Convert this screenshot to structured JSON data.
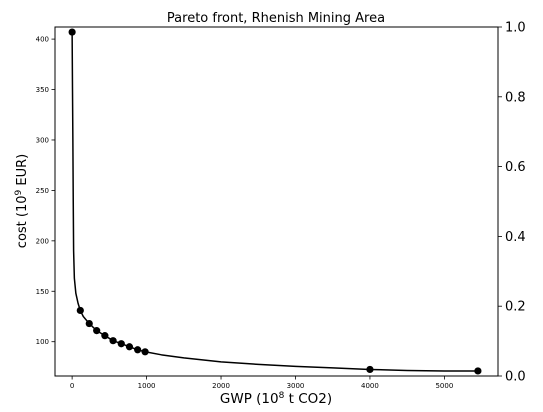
{
  "chart_data": {
    "type": "line",
    "title": "Pareto front, Rhenish Mining Area",
    "xlabel": {
      "pre": "GWP (10",
      "sup": "8",
      "post": " t CO2)"
    },
    "ylabel": {
      "pre": "cost (10",
      "sup": "9",
      "post": " EUR)"
    },
    "xlim": [
      -230,
      5720
    ],
    "ylim": [
      66,
      412
    ],
    "y2lim": [
      0.0,
      1.0
    ],
    "x_ticks": [
      0,
      1000,
      2000,
      3000,
      4000,
      5000
    ],
    "y_ticks": [
      100,
      150,
      200,
      250,
      300,
      350,
      400
    ],
    "y2_ticks": [
      "0.0",
      "0.2",
      "0.4",
      "0.6",
      "0.8",
      "1.0"
    ],
    "grid": false,
    "series": [
      {
        "type": "line",
        "color": "#000000",
        "points": [
          [
            0,
            407
          ],
          [
            5,
            350
          ],
          [
            10,
            300
          ],
          [
            15,
            240
          ],
          [
            20,
            190
          ],
          [
            30,
            163
          ],
          [
            50,
            148
          ],
          [
            80,
            138
          ],
          [
            110,
            131
          ],
          [
            150,
            125
          ],
          [
            230,
            118
          ],
          [
            330,
            111
          ],
          [
            440,
            106
          ],
          [
            550,
            101
          ],
          [
            660,
            98
          ],
          [
            770,
            95
          ],
          [
            880,
            92
          ],
          [
            980,
            90
          ],
          [
            1200,
            87
          ],
          [
            1500,
            84
          ],
          [
            2000,
            80
          ],
          [
            2500,
            77.5
          ],
          [
            3000,
            75.5
          ],
          [
            3500,
            74
          ],
          [
            4000,
            72.5
          ],
          [
            4500,
            71.5
          ],
          [
            5000,
            71
          ],
          [
            5450,
            71
          ]
        ]
      },
      {
        "type": "scatter",
        "color": "#000000",
        "x": [
          0,
          110,
          230,
          330,
          440,
          550,
          660,
          770,
          880,
          980,
          4000,
          5450
        ],
        "y": [
          407,
          131,
          118,
          111,
          106,
          101,
          98,
          95,
          92,
          90,
          72.5,
          71
        ]
      }
    ]
  }
}
